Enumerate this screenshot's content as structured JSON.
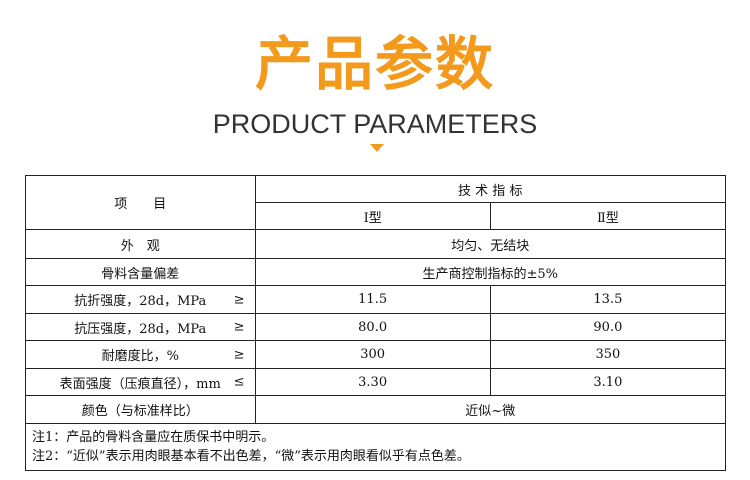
{
  "header": {
    "title": "产品参数",
    "subtitle": "PRODUCT PARAMETERS",
    "accent_color": "#f39a1c",
    "icon": "triangle-down-icon"
  },
  "table": {
    "item_header": "项　　目",
    "spec_header": "技 术 指 标",
    "type_headers": [
      "Ⅰ型",
      "Ⅱ型"
    ],
    "rows": [
      {
        "label": "外　观",
        "sym": "",
        "merged": "均匀、无结块"
      },
      {
        "label": "骨料含量偏差",
        "sym": "",
        "merged": "生产商控制指标的±5%"
      },
      {
        "label": "抗折强度，28d，MPa",
        "sym": "≥",
        "values": [
          "11.5",
          "13.5"
        ]
      },
      {
        "label": "抗压强度，28d，MPa",
        "sym": "≥",
        "values": [
          "80.0",
          "90.0"
        ]
      },
      {
        "label": "耐磨度比，%",
        "sym": "≥",
        "values": [
          "300",
          "350"
        ]
      },
      {
        "label": "表面强度（压痕直径），mm",
        "sym": "≤",
        "values": [
          "3.30",
          "3.10"
        ]
      },
      {
        "label": "颜色（与标准样比）",
        "sym": "",
        "merged": "近似~微"
      }
    ],
    "notes": [
      "注1：产品的骨料含量应在质保书中明示。",
      "注2：“近似”表示用肉眼基本看不出色差，“微”表示用肉眼看似乎有点色差。"
    ]
  }
}
